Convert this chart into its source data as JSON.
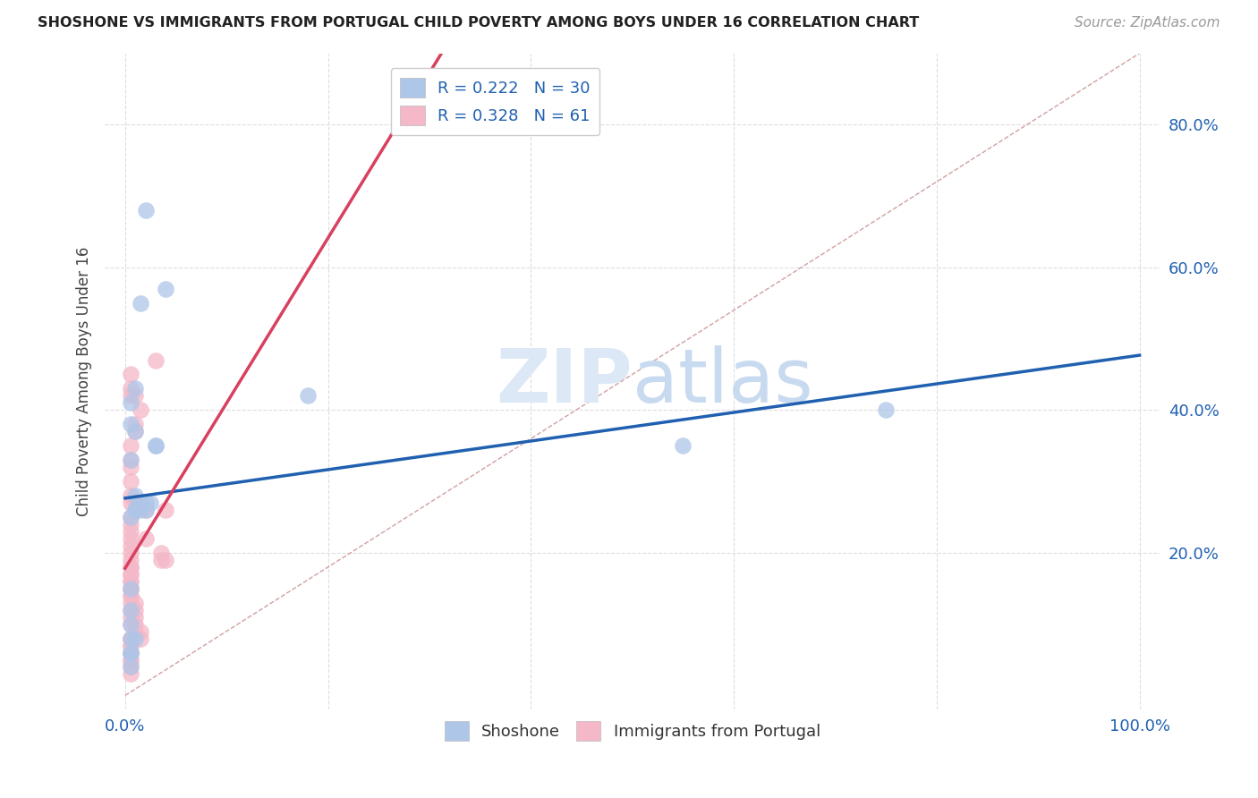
{
  "title": "SHOSHONE VS IMMIGRANTS FROM PORTUGAL CHILD POVERTY AMONG BOYS UNDER 16 CORRELATION CHART",
  "source": "Source: ZipAtlas.com",
  "ylabel": "Child Poverty Among Boys Under 16",
  "shoshone_color": "#aec6e8",
  "portugal_color": "#f4b8c8",
  "shoshone_line_color": "#2060b0",
  "portugal_line_color": "#d84060",
  "diagonal_color": "#d0a0a0",
  "watermark_color": "#dce8f5",
  "shoshone_x": [
    2.0,
    4.0,
    1.5,
    1.0,
    0.5,
    0.5,
    1.0,
    0.5,
    1.0,
    1.5,
    2.0,
    2.5,
    0.5,
    1.0,
    1.5,
    2.0,
    18.0,
    1.0,
    3.0,
    3.0,
    0.5,
    0.5,
    0.5,
    1.0,
    0.5,
    0.5,
    0.5,
    0.5,
    55.0,
    75.0
  ],
  "shoshone_y": [
    68.0,
    57.0,
    55.0,
    43.0,
    41.0,
    38.0,
    37.0,
    33.0,
    28.0,
    27.0,
    27.0,
    27.0,
    25.0,
    26.0,
    26.0,
    26.0,
    42.0,
    26.0,
    35.0,
    35.0,
    15.0,
    12.0,
    10.0,
    8.0,
    8.0,
    6.0,
    6.0,
    4.0,
    35.0,
    40.0
  ],
  "portugal_x": [
    0.5,
    1.0,
    0.5,
    1.0,
    1.0,
    0.5,
    0.5,
    0.5,
    0.5,
    0.5,
    0.5,
    0.5,
    1.0,
    1.0,
    1.5,
    1.5,
    2.0,
    3.0,
    4.0,
    4.0,
    2.0,
    3.5,
    3.5,
    0.5,
    0.5,
    0.5,
    0.5,
    0.5,
    0.5,
    0.5,
    0.5,
    0.5,
    1.5,
    1.5,
    0.5,
    0.5,
    0.5,
    0.5,
    0.5,
    0.5,
    0.5,
    0.5,
    0.5,
    0.5,
    0.5,
    0.5,
    0.5,
    0.5,
    0.5,
    0.5,
    0.5,
    0.5,
    1.0,
    1.0,
    1.0,
    1.0,
    1.0,
    0.5,
    0.5,
    0.5,
    0.5
  ],
  "portugal_y": [
    43.0,
    42.0,
    42.0,
    38.0,
    37.0,
    45.0,
    35.0,
    33.0,
    32.0,
    30.0,
    28.0,
    27.0,
    27.0,
    26.0,
    40.0,
    27.0,
    26.0,
    47.0,
    26.0,
    19.0,
    22.0,
    20.0,
    19.0,
    18.0,
    17.0,
    16.0,
    15.0,
    14.0,
    13.0,
    12.0,
    11.0,
    10.0,
    9.0,
    8.0,
    8.0,
    7.0,
    6.0,
    5.0,
    4.0,
    3.0,
    25.0,
    24.0,
    23.0,
    22.0,
    21.0,
    20.0,
    19.0,
    18.0,
    17.0,
    16.0,
    15.0,
    14.0,
    13.0,
    12.0,
    11.0,
    10.0,
    9.0,
    8.0,
    7.0,
    6.0,
    5.0
  ],
  "xlim": [
    0,
    100
  ],
  "ylim": [
    0,
    90
  ],
  "xticks": [
    0,
    20,
    40,
    60,
    80,
    100
  ],
  "xtick_labels": [
    "0.0%",
    "",
    "",
    "",
    "",
    "100.0%"
  ],
  "yticks": [
    20,
    40,
    60,
    80
  ],
  "ytick_labels": [
    "20.0%",
    "40.0%",
    "60.0%",
    "80.0%"
  ]
}
